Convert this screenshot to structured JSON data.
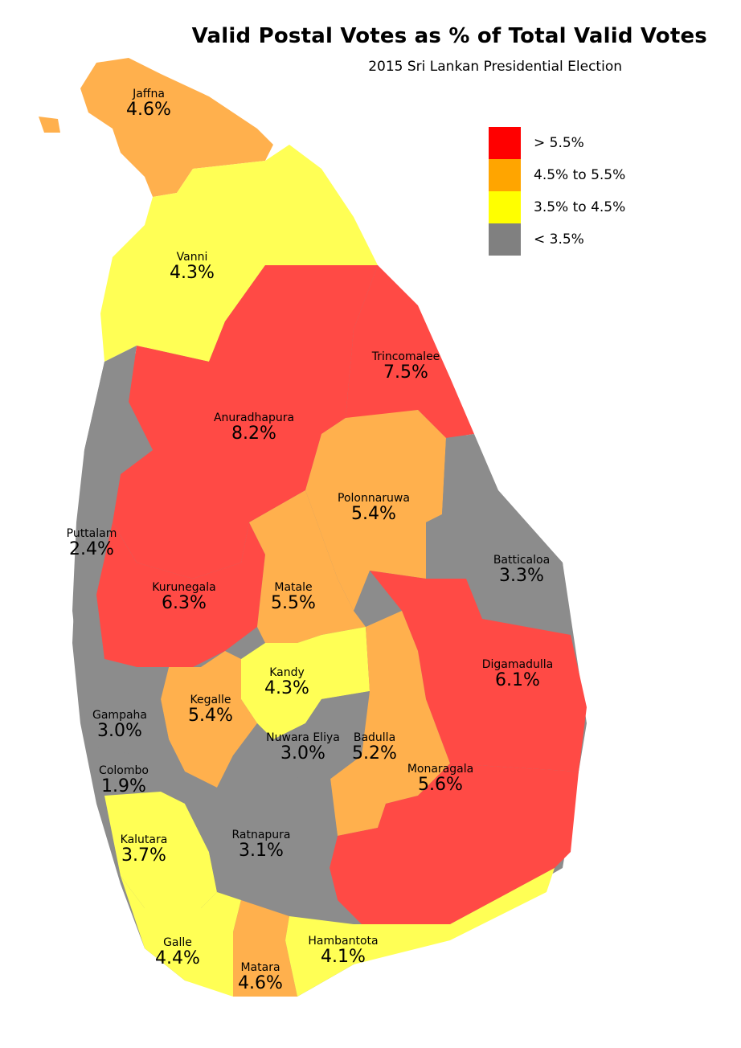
{
  "title": "Valid Postal Votes as % of Total Valid Votes",
  "subtitle": "2015 Sri Lankan Presidential Election",
  "legend": [
    {
      "label": "> 5.5%",
      "color": "#ff0000"
    },
    {
      "label": "4.5% to 5.5%",
      "color": "#ffa500"
    },
    {
      "label": "3.5% to 4.5%",
      "color": "#ffff00"
    },
    {
      "label": "< 3.5%",
      "color": "#808080"
    }
  ],
  "district_colors": {
    "high": "#ff4a45",
    "mid": "#ffb04d",
    "low": "#ffff55",
    "lowest": "#8c8c8c"
  },
  "districts": [
    {
      "name": "Jaffna",
      "value": "4.6%",
      "band": "mid"
    },
    {
      "name": "Vanni",
      "value": "4.3%",
      "band": "low"
    },
    {
      "name": "Trincomalee",
      "value": "7.5%",
      "band": "high"
    },
    {
      "name": "Anuradhapura",
      "value": "8.2%",
      "band": "high"
    },
    {
      "name": "Polonnaruwa",
      "value": "5.4%",
      "band": "mid"
    },
    {
      "name": "Puttalam",
      "value": "2.4%",
      "band": "lowest"
    },
    {
      "name": "Batticaloa",
      "value": "3.3%",
      "band": "lowest"
    },
    {
      "name": "Kurunegala",
      "value": "6.3%",
      "band": "high"
    },
    {
      "name": "Matale",
      "value": "5.5%",
      "band": "mid"
    },
    {
      "name": "Digamadulla",
      "value": "6.1%",
      "band": "high"
    },
    {
      "name": "Kandy",
      "value": "4.3%",
      "band": "low"
    },
    {
      "name": "Kegalle",
      "value": "5.4%",
      "band": "mid"
    },
    {
      "name": "Gampaha",
      "value": "3.0%",
      "band": "lowest"
    },
    {
      "name": "Nuwara Eliya",
      "value": "3.0%",
      "band": "lowest"
    },
    {
      "name": "Badulla",
      "value": "5.2%",
      "band": "mid"
    },
    {
      "name": "Colombo",
      "value": "1.9%",
      "band": "lowest"
    },
    {
      "name": "Monaragala",
      "value": "5.6%",
      "band": "high"
    },
    {
      "name": "Kalutara",
      "value": "3.7%",
      "band": "low"
    },
    {
      "name": "Ratnapura",
      "value": "3.1%",
      "band": "lowest"
    },
    {
      "name": "Galle",
      "value": "4.4%",
      "band": "low"
    },
    {
      "name": "Hambantota",
      "value": "4.1%",
      "band": "low"
    },
    {
      "name": "Matara",
      "value": "4.6%",
      "band": "mid"
    }
  ]
}
